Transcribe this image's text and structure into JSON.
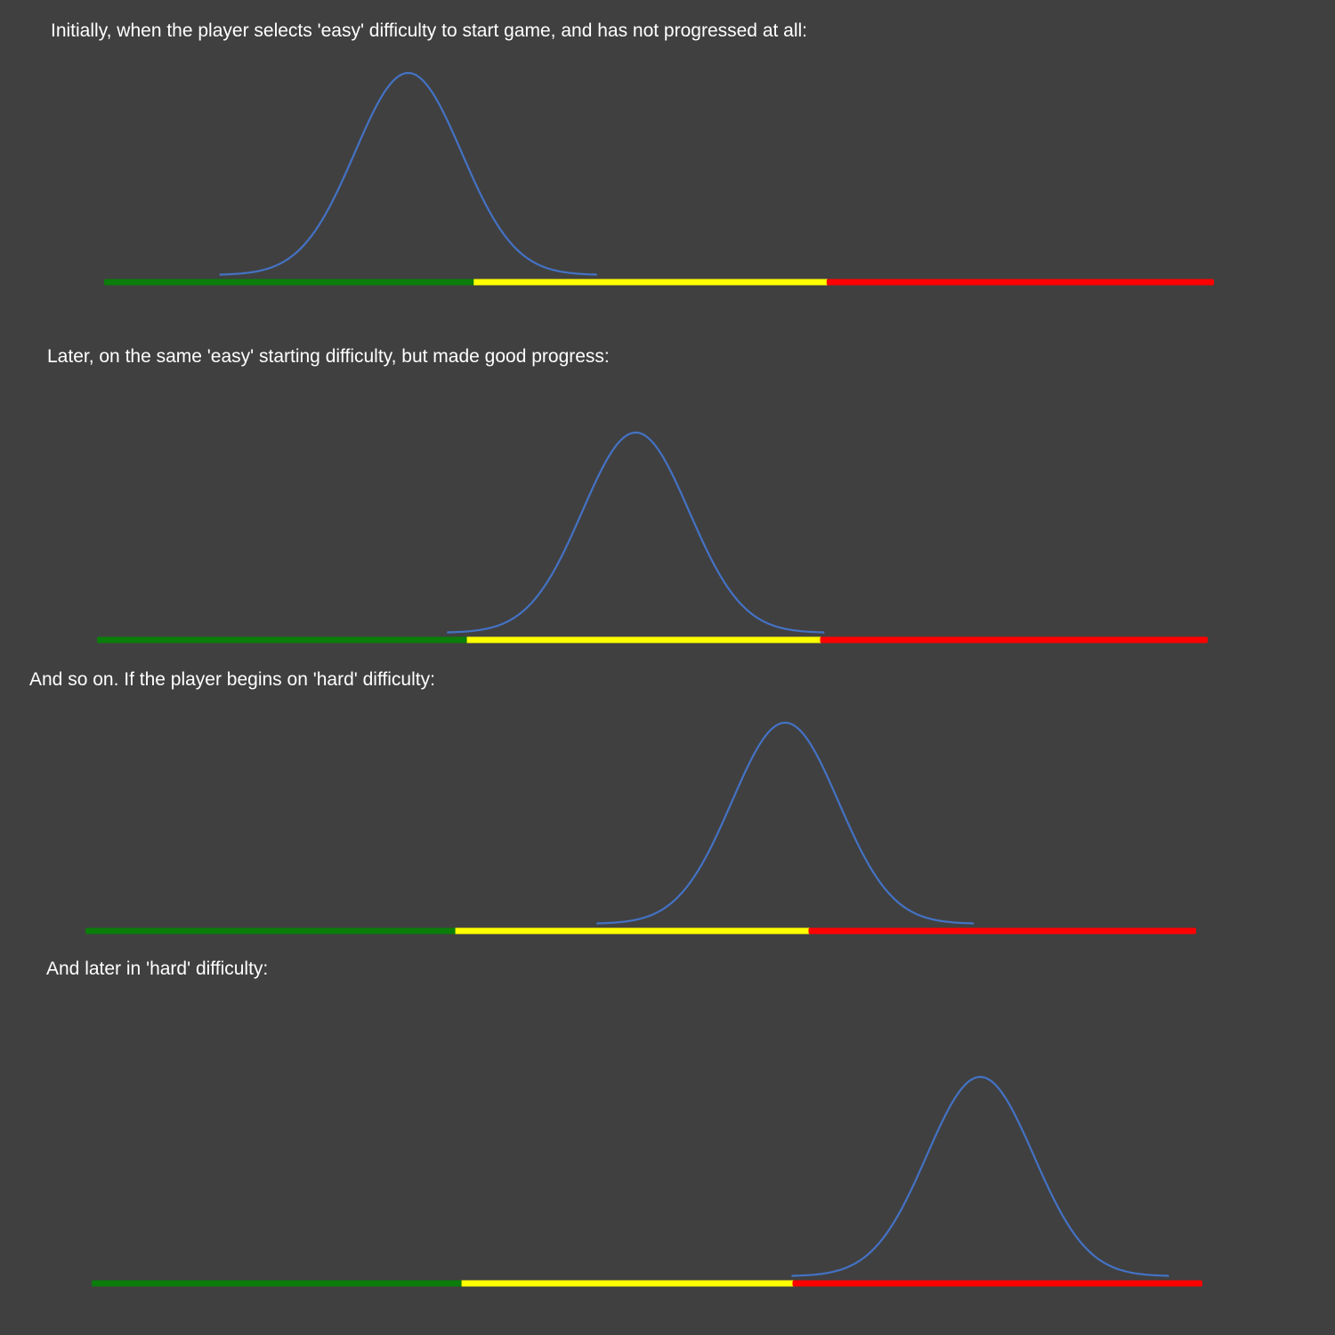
{
  "panels": [
    {
      "caption": "Initially, when the player selects 'easy' difficulty to start game, and has not progressed at all:",
      "distribution_center": 0.274,
      "zones": [
        {
          "zone": "green",
          "color": "#0a7d0a",
          "fraction": 0.333
        },
        {
          "zone": "yellow",
          "color": "#ffff00",
          "fraction": 0.318
        },
        {
          "zone": "red",
          "color": "#ff0000",
          "fraction": 0.349
        }
      ]
    },
    {
      "caption": "Later, on the same 'easy' starting difficulty, but made good progress:",
      "distribution_center": 0.485,
      "zones": [
        {
          "zone": "green",
          "color": "#0a7d0a",
          "fraction": 0.333
        },
        {
          "zone": "yellow",
          "color": "#ffff00",
          "fraction": 0.318
        },
        {
          "zone": "red",
          "color": "#ff0000",
          "fraction": 0.349
        }
      ]
    },
    {
      "caption": "And so on. If the player begins on 'hard' difficulty:",
      "distribution_center": 0.63,
      "zones": [
        {
          "zone": "green",
          "color": "#0a7d0a",
          "fraction": 0.333
        },
        {
          "zone": "yellow",
          "color": "#ffff00",
          "fraction": 0.318
        },
        {
          "zone": "red",
          "color": "#ff0000",
          "fraction": 0.349
        }
      ]
    },
    {
      "caption": "And later in 'hard' difficulty:",
      "distribution_center": 0.8,
      "zones": [
        {
          "zone": "green",
          "color": "#0a7d0a",
          "fraction": 0.333
        },
        {
          "zone": "yellow",
          "color": "#ffff00",
          "fraction": 0.298
        },
        {
          "zone": "red",
          "color": "#ff0000",
          "fraction": 0.369
        }
      ]
    }
  ],
  "curve_color": "#4472c4"
}
